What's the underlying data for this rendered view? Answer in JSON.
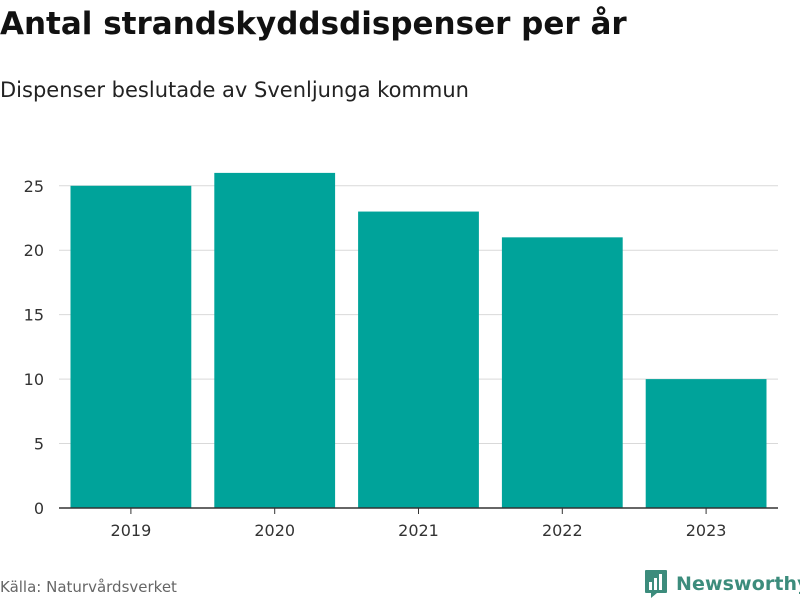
{
  "header": {
    "title": "Antal strandskyddsdispenser per år",
    "subtitle": "Dispenser beslutade av Svenljunga kommun"
  },
  "footer": {
    "source": "Källa: Naturvårdsverket",
    "brand": "Newsworthy"
  },
  "colors": {
    "bar": "#00a39a",
    "grid": "#d9d9d9",
    "axis": "#333333",
    "brand": "#3c8c7c"
  },
  "chart_data": {
    "type": "bar",
    "categories": [
      "2019",
      "2020",
      "2021",
      "2022",
      "2023"
    ],
    "values": [
      25,
      26,
      23,
      21,
      10
    ],
    "title": "Antal strandskyddsdispenser per år",
    "subtitle": "Dispenser beslutade av Svenljunga kommun",
    "xlabel": "",
    "ylabel": "",
    "ylim": [
      0,
      27
    ],
    "yticks": [
      0,
      5,
      10,
      15,
      20,
      25
    ],
    "grid": true,
    "legend": "none"
  }
}
